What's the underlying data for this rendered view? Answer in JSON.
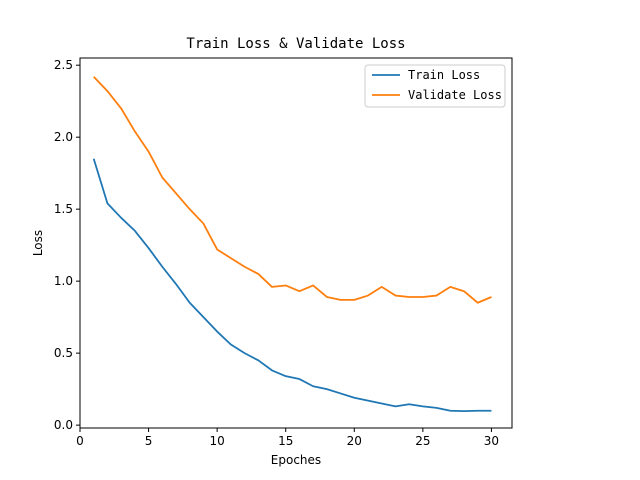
{
  "chart_data": {
    "type": "line",
    "title": "Train Loss & Validate Loss",
    "xlabel": "Epoches",
    "ylabel": "Loss",
    "xlim": [
      0,
      31.5
    ],
    "ylim": [
      -0.02,
      2.55
    ],
    "xticks": [
      0,
      5,
      10,
      15,
      20,
      25,
      30
    ],
    "yticks": [
      0.0,
      0.5,
      1.0,
      1.5,
      2.0,
      2.5
    ],
    "ytick_labels": [
      "0.0",
      "0.5",
      "1.0",
      "1.5",
      "2.0",
      "2.5"
    ],
    "grid": false,
    "legend_position": "top-right",
    "x": [
      1,
      2,
      3,
      4,
      5,
      6,
      7,
      8,
      9,
      10,
      11,
      12,
      13,
      14,
      15,
      16,
      17,
      18,
      19,
      20,
      21,
      22,
      23,
      24,
      25,
      26,
      27,
      28,
      29,
      30
    ],
    "series": [
      {
        "name": "Train Loss",
        "color": "#1f77b4",
        "values": [
          1.85,
          1.54,
          1.44,
          1.35,
          1.23,
          1.1,
          0.98,
          0.85,
          0.75,
          0.65,
          0.56,
          0.5,
          0.45,
          0.38,
          0.34,
          0.32,
          0.27,
          0.25,
          0.22,
          0.19,
          0.17,
          0.15,
          0.13,
          0.145,
          0.13,
          0.12,
          0.1,
          0.097,
          0.1,
          0.1
        ]
      },
      {
        "name": "Validate Loss",
        "color": "#ff7f0e",
        "values": [
          2.42,
          2.32,
          2.2,
          2.04,
          1.9,
          1.72,
          1.61,
          1.5,
          1.4,
          1.22,
          1.16,
          1.1,
          1.05,
          0.96,
          0.97,
          0.93,
          0.97,
          0.89,
          0.87,
          0.87,
          0.9,
          0.96,
          0.9,
          0.89,
          0.89,
          0.9,
          0.96,
          0.93,
          0.85,
          0.89
        ]
      }
    ]
  }
}
